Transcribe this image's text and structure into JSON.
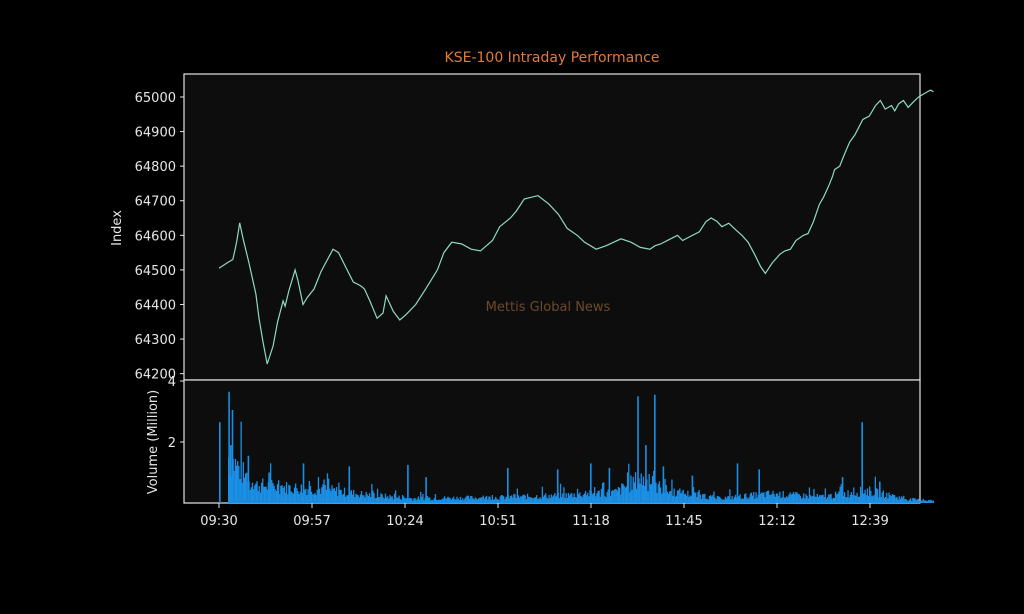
{
  "chart_data": {
    "type": "line",
    "title": "KSE-100 Intraday Performance",
    "watermark": "Mettis Global News",
    "title_color": "#e07b3c",
    "line_color": "#8fd9c2",
    "bar_color": "#1a8fe6",
    "price_panel": {
      "ylabel": "Index",
      "yticks": [
        64200,
        64300,
        64400,
        64500,
        64600,
        64700,
        64800,
        64900,
        65000
      ],
      "ylim": [
        64190,
        65080
      ],
      "series_name": "KSE-100 Index",
      "minutes_from_0930": [
        0,
        2.3,
        4,
        4.6,
        5.2,
        6,
        7,
        8.7,
        10.7,
        11.6,
        12.8,
        14,
        15.7,
        17,
        18.6,
        19.2,
        20.3,
        22.1,
        22.9,
        24.4,
        25.6,
        27.6,
        29.6,
        33.1,
        34.7,
        37.2,
        39,
        41,
        42.2,
        43.8,
        45.9,
        47.6,
        48.5,
        50.6,
        52.5,
        54.2,
        57.1,
        60,
        63.4,
        65.3,
        67.6,
        70.5,
        73.2,
        75.9,
        79.4,
        81.5,
        84.6,
        86.3,
        88.6,
        92.6,
        95.8,
        98.6,
        101.1,
        104,
        106.1,
        109.5,
        112.4,
        116.7,
        119.6,
        122.3,
        125.1,
        126.6,
        128.2,
        131.1,
        133.1,
        134.6,
        136.5,
        139.4,
        141.4,
        142.9,
        144.6,
        146,
        148,
        150.1,
        151.8,
        153.6,
        155.5,
        157.2,
        158.6,
        160.6,
        162.8,
        164.3,
        165.9,
        167.5,
        169.7,
        171,
        172.6,
        174.3,
        175.5,
        177.1,
        178.1,
        178.7,
        180.2,
        181.6,
        183.1,
        184.6,
        186.9,
        188.8,
        190.6,
        192,
        193.4,
        195.2,
        196.2,
        197.3,
        198.7,
        200.1,
        201.5,
        203.1,
        204.8,
        206.6,
        207.4
      ],
      "values": [
        64505,
        64520,
        64530,
        64555,
        64585,
        64636,
        64590,
        64520,
        64430,
        64360,
        64290,
        64228,
        64280,
        64350,
        64410,
        64395,
        64440,
        64500,
        64470,
        64400,
        64420,
        64445,
        64495,
        64560,
        64550,
        64500,
        64465,
        64455,
        64445,
        64410,
        64360,
        64375,
        64425,
        64380,
        64355,
        64370,
        64400,
        64445,
        64500,
        64550,
        64580,
        64575,
        64560,
        64555,
        64585,
        64625,
        64650,
        64670,
        64705,
        64715,
        64690,
        64660,
        64620,
        64600,
        64580,
        64560,
        64570,
        64590,
        64580,
        64565,
        64560,
        64570,
        64575,
        64590,
        64600,
        64585,
        64595,
        64610,
        64640,
        64650,
        64640,
        64625,
        64635,
        64615,
        64600,
        64580,
        64545,
        64510,
        64490,
        64520,
        64545,
        64555,
        64560,
        64585,
        64600,
        64605,
        64640,
        64690,
        64710,
        64745,
        64770,
        64790,
        64800,
        64835,
        64870,
        64890,
        64935,
        64945,
        64975,
        64990,
        64965,
        64975,
        64960,
        64980,
        64990,
        64970,
        64985,
        65000,
        65010,
        65020,
        65015
      ]
    },
    "volume_panel": {
      "ylabel": "Volume (Million)",
      "yticks": [
        2,
        4
      ],
      "ylim": [
        0,
        4
      ],
      "series_name": "Volume",
      "spikes": [
        {
          "minute": 0,
          "value": 2.65
        },
        {
          "minute": 2.7,
          "value": 3.65
        },
        {
          "minute": 3.7,
          "value": 3.05
        },
        {
          "minute": 3.2,
          "value": 1.9
        },
        {
          "minute": 8.3,
          "value": 1.55
        },
        {
          "minute": 14.3,
          "value": 1.0
        },
        {
          "minute": 24.3,
          "value": 1.3
        },
        {
          "minute": 37.6,
          "value": 1.2
        },
        {
          "minute": 54.6,
          "value": 1.25
        },
        {
          "minute": 59.9,
          "value": 0.85
        },
        {
          "minute": 83.6,
          "value": 1.15
        },
        {
          "minute": 98.1,
          "value": 1.1
        },
        {
          "minute": 107.7,
          "value": 1.3
        },
        {
          "minute": 113.1,
          "value": 1.15
        },
        {
          "minute": 121.4,
          "value": 3.5
        },
        {
          "minute": 123.7,
          "value": 1.9
        },
        {
          "minute": 126.3,
          "value": 3.55
        },
        {
          "minute": 128.8,
          "value": 1.2
        },
        {
          "minute": 137.2,
          "value": 0.9
        },
        {
          "minute": 150.3,
          "value": 1.3
        },
        {
          "minute": 156.6,
          "value": 1.1
        },
        {
          "minute": 180.8,
          "value": 0.85
        },
        {
          "minute": 186.5,
          "value": 2.65
        },
        {
          "minute": 191.6,
          "value": 0.7
        }
      ],
      "baseline_profile": [
        {
          "minute": 2.6,
          "value": 1.5
        },
        {
          "minute": 6,
          "value": 1.1
        },
        {
          "minute": 9,
          "value": 0.6
        },
        {
          "minute": 20,
          "value": 0.5
        },
        {
          "minute": 30,
          "value": 0.45
        },
        {
          "minute": 40,
          "value": 0.3
        },
        {
          "minute": 55,
          "value": 0.15
        },
        {
          "minute": 80,
          "value": 0.18
        },
        {
          "minute": 100,
          "value": 0.25
        },
        {
          "minute": 115,
          "value": 0.35
        },
        {
          "minute": 122,
          "value": 0.8
        },
        {
          "minute": 130,
          "value": 0.4
        },
        {
          "minute": 145,
          "value": 0.15
        },
        {
          "minute": 160,
          "value": 0.3
        },
        {
          "minute": 175,
          "value": 0.2
        },
        {
          "minute": 188,
          "value": 0.4
        },
        {
          "minute": 200,
          "value": 0.12
        },
        {
          "minute": 207.5,
          "value": 0.08
        }
      ]
    },
    "xaxis": {
      "tick_labels": [
        "09:30",
        "09:57",
        "10:24",
        "10:51",
        "11:18",
        "11:45",
        "12:12",
        "12:39"
      ],
      "tick_minutes": [
        0,
        27,
        54,
        81,
        108,
        135,
        162,
        189
      ]
    }
  }
}
